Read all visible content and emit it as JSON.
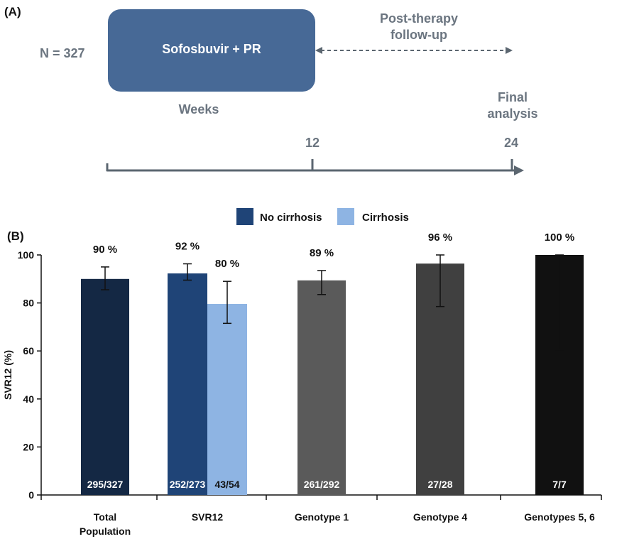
{
  "panel_a": {
    "label": "(A)",
    "n_label": "N = 327",
    "treatment_label": "Sofosbuvir + PR",
    "followup_label_line1": "Post-therapy",
    "followup_label_line2": "follow-up",
    "weeks_label": "Weeks",
    "final_label_line1": "Final",
    "final_label_line2": "analysis",
    "timeline_ticks": [
      "12",
      "24"
    ],
    "colors": {
      "box": "#476996",
      "text_gray": "#6b7580",
      "axis": "#5b6670"
    }
  },
  "panel_b": {
    "label": "(B)"
  },
  "chart_data": {
    "type": "bar",
    "title": "",
    "xlabel": "",
    "ylabel": "SVR12 (%)",
    "ylim": [
      0,
      100
    ],
    "yticks": [
      "0",
      "20",
      "40",
      "60",
      "80",
      "100"
    ],
    "grid": false,
    "legend": {
      "placement": "top-center",
      "entries": [
        {
          "name": "No cirrhosis",
          "color": "#1f4477"
        },
        {
          "name": "Cirrhosis",
          "color": "#8eb4e3"
        }
      ]
    },
    "categories": [
      {
        "label_lines": [
          "Total",
          "Population"
        ],
        "bars": [
          {
            "value": 90,
            "err_low": 85.5,
            "err_high": 95,
            "pct_label": "90 %",
            "count_label": "295/327",
            "color": "#142844",
            "count_color": "#ffffff"
          }
        ]
      },
      {
        "label_lines": [
          "SVR12"
        ],
        "bars": [
          {
            "series": "No cirrhosis",
            "value": 92.3,
            "err_low": 89.5,
            "err_high": 96.3,
            "pct_label": "92 %",
            "count_label": "252/273",
            "color": "#1f4477",
            "count_color": "#ffffff"
          },
          {
            "series": "Cirrhosis",
            "value": 79.6,
            "err_low": 71.5,
            "err_high": 89,
            "pct_label": "80 %",
            "count_label": "43/54",
            "color": "#8eb4e3",
            "count_color": "#111111"
          }
        ]
      },
      {
        "label_lines": [
          "Genotype 1"
        ],
        "bars": [
          {
            "value": 89.4,
            "err_low": 83.5,
            "err_high": 93.5,
            "pct_label": "89 %",
            "count_label": "261/292",
            "color": "#5a5a5a",
            "count_color": "#ffffff"
          }
        ]
      },
      {
        "label_lines": [
          "Genotype 4"
        ],
        "bars": [
          {
            "value": 96.4,
            "err_low": 78.5,
            "err_high": 100,
            "pct_label": "96 %",
            "count_label": "27/28",
            "color": "#404040",
            "count_color": "#ffffff"
          }
        ]
      },
      {
        "label_lines": [
          "Genotypes 5, 6"
        ],
        "bars": [
          {
            "value": 100,
            "err_low": 60.5,
            "err_high": 100,
            "pct_label": "100 %",
            "count_label": "7/7",
            "color": "#111111",
            "count_color": "#ffffff"
          }
        ]
      }
    ]
  }
}
